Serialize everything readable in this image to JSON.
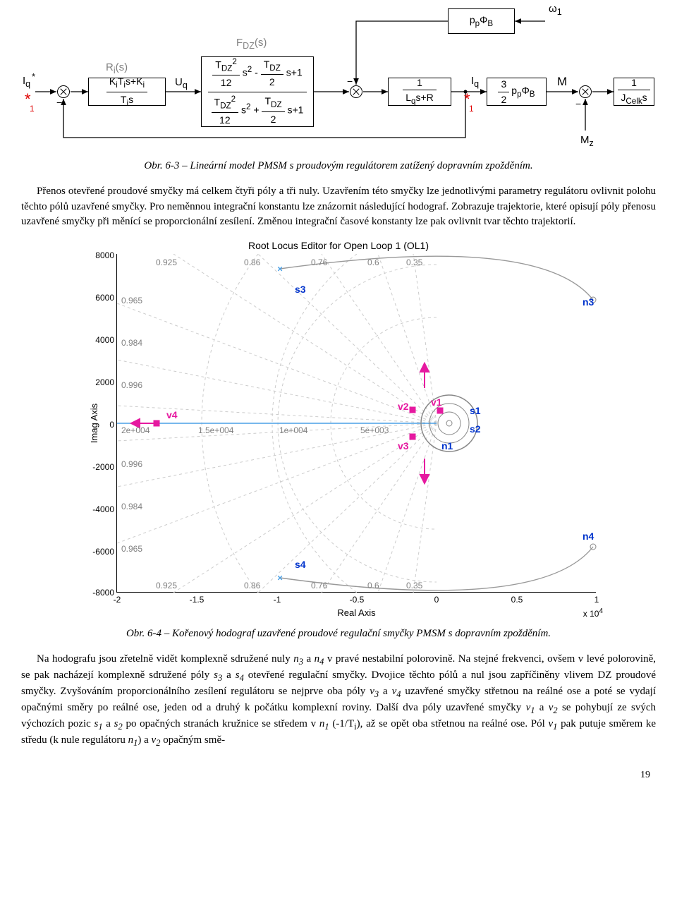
{
  "diagram": {
    "labels": {
      "Iq_star": "I",
      "Iq_star_sub": "q",
      "Iq_star_sup": "*",
      "Ri": "R",
      "Ri_sub": "i",
      "Ri_arg": "(s)",
      "Uq": "U",
      "Uq_sub": "q",
      "Fdz": "F",
      "Fdz_sub": "DZ",
      "Fdz_arg": "(s)",
      "Iq": "I",
      "Iq_sub": "q",
      "pp_phi_b": "p",
      "pp_sub": "p",
      "phi": "Φ",
      "phi_sub": "B",
      "omega1": "ω",
      "omega1_sub": "1",
      "M": "M",
      "Mz": "M",
      "Mz_sub": "z"
    },
    "blocks": {
      "ri": {
        "num": "K",
        "ri_sub1": "i",
        "ri_t": "T",
        "ri_tsub": "i",
        "ri_plus": "s+K",
        "ri_sub2": "i",
        "den": "T",
        "den_sub": "i",
        "den_s": "s"
      },
      "fdz_num_a": "T",
      "fdz_num_a_sub": "DZ",
      "fdz_num_b": "12",
      "fdz_s2": "s",
      "fdz_minus": " - ",
      "fdz_c": "T",
      "fdz_c_sub": "DZ",
      "fdz_2": "2",
      "fdz_s1": "s+1",
      "fdz_den_plus": " + ",
      "lqr": {
        "num": "1",
        "den1": "L",
        "den1_sub": "q",
        "den2": "s+R"
      },
      "pp32": {
        "num": "3",
        "den": "2",
        "pp": "p",
        "pp_sub": "p",
        "phi": "Φ",
        "phi_sub": "B"
      },
      "jcelk": {
        "num": "1",
        "den": "J",
        "den_sub": "Celk",
        "s": "s"
      }
    }
  },
  "caption1": "Obr. 6-3 – Lineární model PMSM s proudovým regulátorem zatížený dopravním zpožděním.",
  "para1": "Přenos otevřené proudové smyčky má celkem čtyři póly a tři nuly. Uzavřením této smyčky lze jednotlivými parametry regulátoru ovlivnit polohu těchto pólů uzavřené smyčky. Pro neměnnou integrační konstantu lze znázornit následující hodograf. Zobrazuje trajektorie, které opisují póly přenosu uzavřené smyčky při měnící se proporcionální zesílení. Změnou integrační časové konstanty lze pak ovlivnit tvar těchto trajektorií.",
  "rootlocus": {
    "title": "Root Locus Editor for Open Loop 1 (OL1)",
    "ylabel": "Imag Axis",
    "xlabel": "Real Axis",
    "x10": "x 10",
    "x10_sup": "4",
    "ylim": [
      -8000,
      8000
    ],
    "xlim": [
      -2,
      1
    ],
    "yticks": [
      "8000",
      "6000",
      "4000",
      "2000",
      "0",
      "-2000",
      "-4000",
      "-6000",
      "-8000"
    ],
    "xticks": [
      "-2",
      "-1.5",
      "-1",
      "-0.5",
      "0",
      "0.5",
      "1"
    ],
    "damping_labels_top": [
      "0.925",
      "0.86",
      "0.76",
      "0.6",
      "0.35"
    ],
    "damping_labels_left": [
      "0.965",
      "0.984",
      "0.996"
    ],
    "damping_labels_left_btm": [
      "0.996",
      "0.984",
      "0.965"
    ],
    "damping_labels_btm": [
      "0.925",
      "0.86",
      "0.76",
      "0.6",
      "0.35"
    ],
    "wn_labels": [
      "2e+004",
      "1.5e+004",
      "1e+004",
      "5e+003"
    ],
    "annotations": {
      "s3": "s3",
      "n3": "n3",
      "s4": "s4",
      "n4": "n4",
      "v1": "v1",
      "v2": "v2",
      "v3": "v3",
      "v4": "v4",
      "s1": "s1",
      "s2": "s2",
      "n1": "n1"
    },
    "colors": {
      "marker": "#e619a0",
      "locus": "#4aa0e6",
      "grid": "#cccccc",
      "labels_blue": "#0033cc",
      "labels_gray": "#808080"
    },
    "markers": {
      "v4": {
        "re": -1.75,
        "im": 0
      },
      "v2": {
        "re": -0.15,
        "im": 650
      },
      "v3": {
        "re": -0.15,
        "im": -650
      },
      "v1": {
        "re": 0.02,
        "im": 600
      },
      "s3_pole": {
        "re": -0.98,
        "im": 7300
      },
      "s4_pole": {
        "re": -0.98,
        "im": -7300
      },
      "n3_zero": {
        "re": 0.98,
        "im": 7300
      },
      "n4_zero": {
        "re": 0.98,
        "im": -7300
      },
      "n1_zero": {
        "re": 0.08,
        "im": 0
      }
    }
  },
  "caption2": "Obr. 6-4 – Kořenový hodograf  uzavřené proudové regulační smyčky PMSM  s dopravním zpožděním.",
  "para2_parts": [
    "Na hodografu jsou zřetelně vidět komplexně sdružené nuly ",
    "n",
    "3",
    " a ",
    "n",
    "4",
    " v pravé nestabilní polorovině. Na stejné frekvenci, ovšem v levé polorovině, se pak nacházejí komplexně sdružené póly ",
    "s",
    "3",
    " a ",
    "s",
    "4",
    " otevřené regulační smyčky. Dvojice těchto pólů a nul jsou zapříčiněny vlivem DZ proudové smyčky. Zvyšováním proporcionálního zesílení regulátoru se nejprve oba póly ",
    "v",
    "3",
    " a ",
    "v",
    "4",
    " uzavřené smyčky střetnou na reálné ose a poté se vydají opačnými směry po reálné ose, jeden od a druhý k počátku komplexní roviny. Další dva póly uzavřené smyčky ",
    "v",
    "1",
    " a ",
    "v",
    "2",
    " se pohybují ze svých výchozích pozic ",
    "s",
    "1",
    " a ",
    "s",
    "2",
    " po opačných stranách kružnice se středem v ",
    "n",
    "1",
    " (-1/T",
    "i",
    "), až se opět oba střetnou na reálné ose. Pól ",
    "v",
    "1",
    " pak putuje směrem ke středu (k nule regulátoru ",
    "n",
    "1",
    ") a ",
    "v",
    "2",
    " opačným smě-"
  ],
  "pagenum": "19"
}
